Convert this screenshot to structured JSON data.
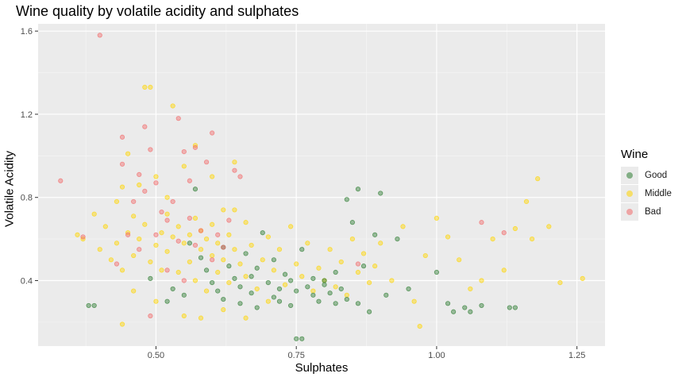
{
  "chart_data": {
    "type": "scatter",
    "title": "Wine quality by volatile acidity and sulphates",
    "xlabel": "Sulphates",
    "ylabel": "Volatile Acidity",
    "xlim": [
      0.29,
      1.3
    ],
    "ylim": [
      0.085,
      1.635
    ],
    "x_ticks": [
      0.5,
      0.75,
      1.0,
      1.25
    ],
    "x_tick_labels": [
      "0.50",
      "0.75",
      "1.00",
      "1.25"
    ],
    "y_ticks": [
      0.4,
      0.8,
      1.2,
      1.6
    ],
    "y_tick_labels": [
      "0.4",
      "0.8",
      "1.2",
      "1.6"
    ],
    "grid": true,
    "legend": {
      "title": "Wine",
      "position": "right"
    },
    "series": [
      {
        "name": "Good",
        "color": "#2e7d32",
        "points": [
          [
            0.38,
            0.28
          ],
          [
            0.39,
            0.28
          ],
          [
            0.49,
            0.41
          ],
          [
            0.52,
            0.3
          ],
          [
            0.53,
            0.36
          ],
          [
            0.55,
            0.33
          ],
          [
            0.56,
            0.58
          ],
          [
            0.57,
            0.84
          ],
          [
            0.58,
            0.51
          ],
          [
            0.59,
            0.45
          ],
          [
            0.6,
            0.39
          ],
          [
            0.61,
            0.35
          ],
          [
            0.62,
            0.56
          ],
          [
            0.62,
            0.31
          ],
          [
            0.63,
            0.47
          ],
          [
            0.64,
            0.41
          ],
          [
            0.65,
            0.37
          ],
          [
            0.65,
            0.29
          ],
          [
            0.66,
            0.53
          ],
          [
            0.67,
            0.34
          ],
          [
            0.68,
            0.46
          ],
          [
            0.68,
            0.27
          ],
          [
            0.69,
            0.63
          ],
          [
            0.7,
            0.39
          ],
          [
            0.71,
            0.32
          ],
          [
            0.71,
            0.5
          ],
          [
            0.72,
            0.36
          ],
          [
            0.73,
            0.43
          ],
          [
            0.74,
            0.28
          ],
          [
            0.74,
            0.4
          ],
          [
            0.75,
            0.35
          ],
          [
            0.75,
            0.12
          ],
          [
            0.76,
            0.12
          ],
          [
            0.76,
            0.55
          ],
          [
            0.77,
            0.37
          ],
          [
            0.78,
            0.33
          ],
          [
            0.78,
            0.41
          ],
          [
            0.79,
            0.3
          ],
          [
            0.8,
            0.38
          ],
          [
            0.81,
            0.34
          ],
          [
            0.82,
            0.44
          ],
          [
            0.82,
            0.29
          ],
          [
            0.83,
            0.36
          ],
          [
            0.84,
            0.31
          ],
          [
            0.84,
            0.79
          ],
          [
            0.85,
            0.68
          ],
          [
            0.86,
            0.29
          ],
          [
            0.87,
            0.47
          ],
          [
            0.88,
            0.25
          ],
          [
            0.89,
            0.62
          ],
          [
            0.9,
            0.82
          ],
          [
            0.91,
            0.33
          ],
          [
            0.93,
            0.6
          ],
          [
            0.95,
            0.36
          ],
          [
            1.0,
            0.44
          ],
          [
            1.02,
            0.29
          ],
          [
            1.03,
            0.25
          ],
          [
            1.05,
            0.27
          ],
          [
            1.06,
            0.25
          ],
          [
            1.08,
            0.28
          ],
          [
            1.13,
            0.27
          ],
          [
            1.14,
            0.27
          ],
          [
            0.86,
            0.84
          ],
          [
            0.8,
            0.4
          ],
          [
            0.72,
            0.3
          ],
          [
            0.67,
            0.42
          ]
        ]
      },
      {
        "name": "Middle",
        "color": "#ffd500",
        "points": [
          [
            0.36,
            0.62
          ],
          [
            0.37,
            0.6
          ],
          [
            0.39,
            0.72
          ],
          [
            0.4,
            0.55
          ],
          [
            0.41,
            0.66
          ],
          [
            0.42,
            0.5
          ],
          [
            0.43,
            0.58
          ],
          [
            0.43,
            0.78
          ],
          [
            0.44,
            0.19
          ],
          [
            0.44,
            0.45
          ],
          [
            0.45,
            0.63
          ],
          [
            0.46,
            0.71
          ],
          [
            0.46,
            0.52
          ],
          [
            0.47,
            0.86
          ],
          [
            0.47,
            0.6
          ],
          [
            0.48,
            1.33
          ],
          [
            0.48,
            0.67
          ],
          [
            0.49,
            1.33
          ],
          [
            0.49,
            0.49
          ],
          [
            0.5,
            0.57
          ],
          [
            0.5,
            0.9
          ],
          [
            0.51,
            0.63
          ],
          [
            0.51,
            0.45
          ],
          [
            0.52,
            0.72
          ],
          [
            0.52,
            0.54
          ],
          [
            0.53,
            0.61
          ],
          [
            0.53,
            1.24
          ],
          [
            0.54,
            0.66
          ],
          [
            0.54,
            0.44
          ],
          [
            0.55,
            0.58
          ],
          [
            0.55,
            0.95
          ],
          [
            0.56,
            0.62
          ],
          [
            0.56,
            0.49
          ],
          [
            0.57,
            0.7
          ],
          [
            0.57,
            0.4
          ],
          [
            0.58,
            0.64
          ],
          [
            0.58,
            0.55
          ],
          [
            0.59,
            0.6
          ],
          [
            0.59,
            0.35
          ],
          [
            0.6,
            0.67
          ],
          [
            0.6,
            0.52
          ],
          [
            0.61,
            0.58
          ],
          [
            0.61,
            0.44
          ],
          [
            0.62,
            0.74
          ],
          [
            0.62,
            0.5
          ],
          [
            0.63,
            0.62
          ],
          [
            0.63,
            0.39
          ],
          [
            0.64,
            0.55
          ],
          [
            0.64,
            0.97
          ],
          [
            0.65,
            0.48
          ],
          [
            0.66,
            0.68
          ],
          [
            0.66,
            0.42
          ],
          [
            0.67,
            0.57
          ],
          [
            0.68,
            0.36
          ],
          [
            0.69,
            0.5
          ],
          [
            0.7,
            0.61
          ],
          [
            0.71,
            0.45
          ],
          [
            0.72,
            0.55
          ],
          [
            0.73,
            0.38
          ],
          [
            0.74,
            0.66
          ],
          [
            0.75,
            0.48
          ],
          [
            0.76,
            0.42
          ],
          [
            0.77,
            0.58
          ],
          [
            0.78,
            0.35
          ],
          [
            0.79,
            0.46
          ],
          [
            0.8,
            0.4
          ],
          [
            0.81,
            0.55
          ],
          [
            0.82,
            0.37
          ],
          [
            0.83,
            0.49
          ],
          [
            0.84,
            0.33
          ],
          [
            0.85,
            0.6
          ],
          [
            0.86,
            0.44
          ],
          [
            0.87,
            0.53
          ],
          [
            0.88,
            0.39
          ],
          [
            0.89,
            0.47
          ],
          [
            0.9,
            0.58
          ],
          [
            0.92,
            0.4
          ],
          [
            0.94,
            0.66
          ],
          [
            0.96,
            0.3
          ],
          [
            0.97,
            0.18
          ],
          [
            0.98,
            0.52
          ],
          [
            1.0,
            0.7
          ],
          [
            1.02,
            0.61
          ],
          [
            1.04,
            0.5
          ],
          [
            1.06,
            0.36
          ],
          [
            1.08,
            0.4
          ],
          [
            1.1,
            0.6
          ],
          [
            1.12,
            0.45
          ],
          [
            1.14,
            0.65
          ],
          [
            1.16,
            0.78
          ],
          [
            1.17,
            0.6
          ],
          [
            1.18,
            0.89
          ],
          [
            1.2,
            0.66
          ],
          [
            1.22,
            0.39
          ],
          [
            1.26,
            0.41
          ],
          [
            0.44,
            0.85
          ],
          [
            0.46,
            0.35
          ],
          [
            0.5,
            0.3
          ],
          [
            0.55,
            0.23
          ],
          [
            0.58,
            0.22
          ],
          [
            0.62,
            0.26
          ],
          [
            0.66,
            0.22
          ],
          [
            0.7,
            0.3
          ],
          [
            0.52,
            0.8
          ],
          [
            0.6,
            0.9
          ],
          [
            0.45,
            1.01
          ],
          [
            0.64,
            0.74
          ],
          [
            0.57,
            1.05
          ]
        ]
      },
      {
        "name": "Bad",
        "color": "#f26b6b",
        "points": [
          [
            0.33,
            0.88
          ],
          [
            0.37,
            0.61
          ],
          [
            0.4,
            1.58
          ],
          [
            0.43,
            0.48
          ],
          [
            0.44,
            1.09
          ],
          [
            0.44,
            0.96
          ],
          [
            0.45,
            0.62
          ],
          [
            0.46,
            0.78
          ],
          [
            0.47,
            0.91
          ],
          [
            0.47,
            0.55
          ],
          [
            0.48,
            1.14
          ],
          [
            0.48,
            0.83
          ],
          [
            0.49,
            1.03
          ],
          [
            0.49,
            0.23
          ],
          [
            0.5,
            0.62
          ],
          [
            0.5,
            0.87
          ],
          [
            0.51,
            0.73
          ],
          [
            0.52,
            0.69
          ],
          [
            0.52,
            0.45
          ],
          [
            0.53,
            0.78
          ],
          [
            0.54,
            1.18
          ],
          [
            0.54,
            0.59
          ],
          [
            0.55,
            1.02
          ],
          [
            0.55,
            0.4
          ],
          [
            0.56,
            0.7
          ],
          [
            0.57,
            0.57
          ],
          [
            0.57,
            1.04
          ],
          [
            0.58,
            0.64
          ],
          [
            0.59,
            0.97
          ],
          [
            0.6,
            1.11
          ],
          [
            0.61,
            0.62
          ],
          [
            0.62,
            0.56
          ],
          [
            0.63,
            0.69
          ],
          [
            0.64,
            0.93
          ],
          [
            0.65,
            0.9
          ],
          [
            0.86,
            0.48
          ],
          [
            1.08,
            0.68
          ],
          [
            1.12,
            0.63
          ],
          [
            0.56,
            0.88
          ],
          [
            0.6,
            0.5
          ]
        ]
      }
    ]
  }
}
